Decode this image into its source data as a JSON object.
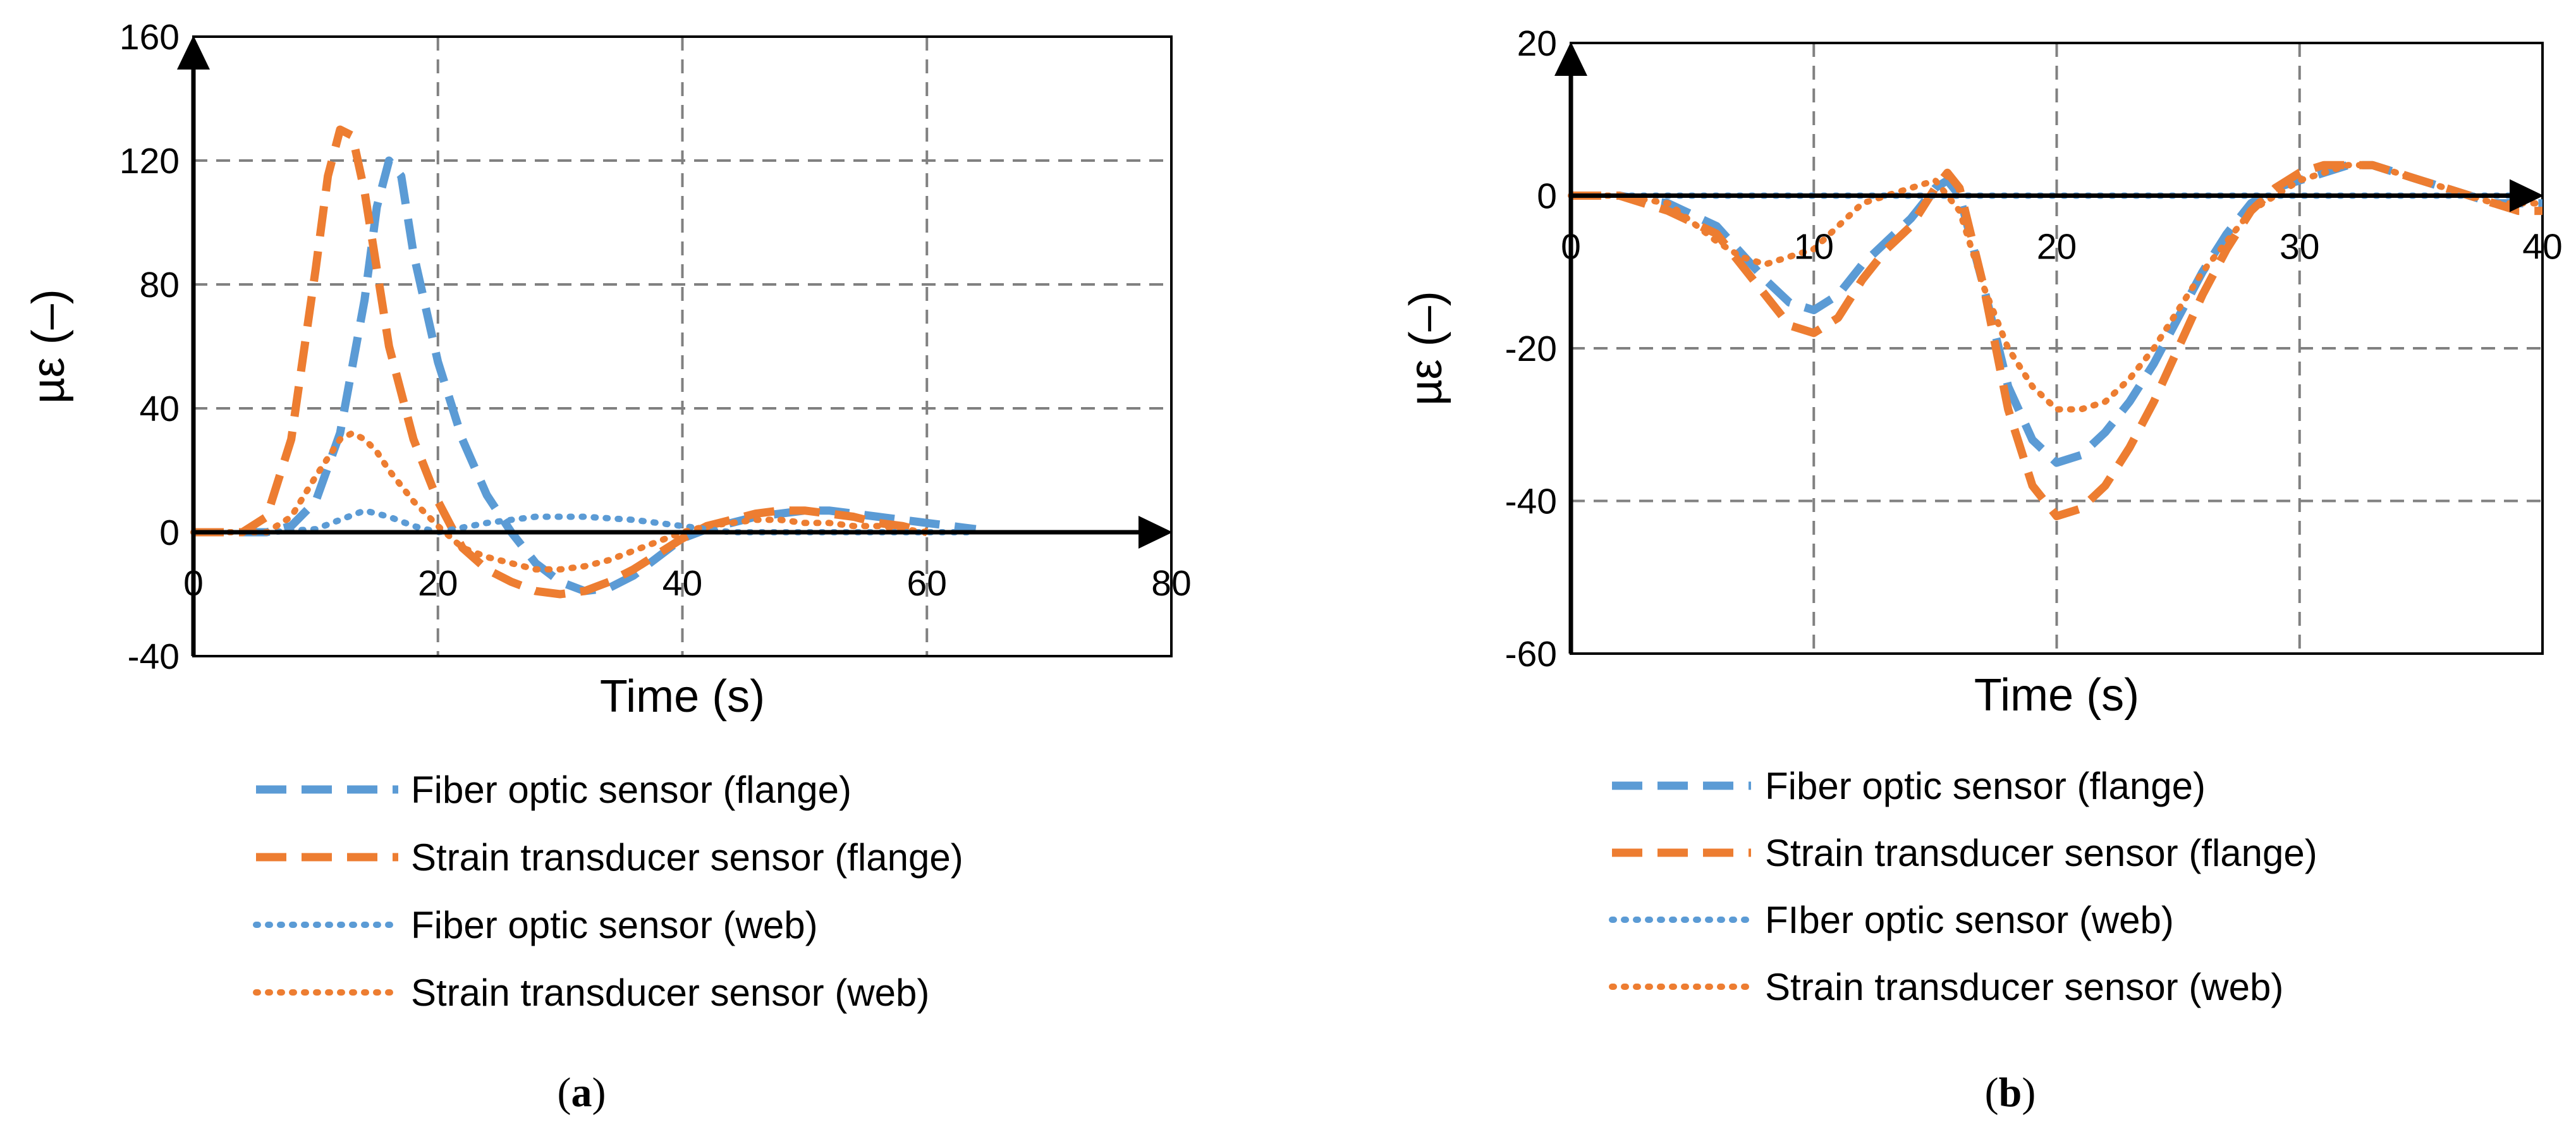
{
  "colors": {
    "blue": "#5b9bd5",
    "orange": "#ed7d31",
    "grid": "#808080",
    "axis": "#000000"
  },
  "chart_data": [
    {
      "type": "line",
      "caption": {
        "open": "(",
        "letter": "a",
        "close": ")"
      },
      "xlabel": "Time (s)",
      "ylabel": "µε (–)",
      "xlim": [
        0,
        80
      ],
      "ylim": [
        -40,
        160
      ],
      "xticks": [
        0,
        20,
        40,
        60,
        80
      ],
      "yticks": [
        -40,
        0,
        40,
        80,
        120,
        160
      ],
      "xtick_labels": [
        "0",
        "20",
        "40",
        "60",
        "80"
      ],
      "ytick_labels": [
        "-40",
        "0",
        "40",
        "80",
        "120",
        "160"
      ],
      "grid": true,
      "legend_position": "bottom",
      "series": [
        {
          "name": "Fiber optic sensor (flange)",
          "color": "blue",
          "style": "dashed",
          "x": [
            0,
            4,
            6,
            8,
            10,
            12,
            14,
            15,
            16,
            17,
            18,
            20,
            22,
            24,
            26,
            28,
            30,
            32,
            34,
            36,
            38,
            40,
            42,
            44,
            46,
            48,
            50,
            52,
            54,
            56,
            58,
            60,
            62,
            64
          ],
          "y": [
            0,
            0,
            0,
            2,
            10,
            32,
            75,
            105,
            120,
            115,
            90,
            55,
            30,
            12,
            0,
            -10,
            -16,
            -19,
            -18,
            -14,
            -8,
            -2,
            1,
            3,
            5,
            6,
            7,
            7,
            6,
            5,
            4,
            3,
            2,
            1
          ]
        },
        {
          "name": "Strain transducer sensor (flange)",
          "color": "orange",
          "style": "dashed",
          "x": [
            0,
            4,
            6,
            8,
            10,
            11,
            12,
            13,
            14,
            15,
            16,
            18,
            20,
            22,
            24,
            26,
            28,
            30,
            32,
            34,
            36,
            38,
            40,
            42,
            44,
            46,
            48,
            50,
            52,
            54,
            56,
            58,
            60
          ],
          "y": [
            0,
            0,
            5,
            30,
            85,
            115,
            130,
            128,
            110,
            85,
            60,
            30,
            10,
            -5,
            -12,
            -16,
            -19,
            -20,
            -19,
            -16,
            -12,
            -7,
            -2,
            2,
            4,
            6,
            7,
            7,
            6,
            5,
            3,
            2,
            0
          ]
        },
        {
          "name": "Fiber optic sensor (web)",
          "color": "blue",
          "style": "dotted",
          "x": [
            0,
            6,
            10,
            12,
            14,
            16,
            18,
            20,
            24,
            28,
            32,
            36,
            40,
            44,
            48,
            52,
            56,
            60,
            64
          ],
          "y": [
            0,
            0,
            1,
            4,
            7,
            5,
            2,
            0,
            3,
            5,
            5,
            4,
            2,
            0,
            0,
            0,
            0,
            0,
            0
          ]
        },
        {
          "name": "Strain transducer sensor (web)",
          "color": "orange",
          "style": "dotted",
          "x": [
            0,
            6,
            8,
            10,
            12,
            13,
            14,
            15,
            16,
            18,
            20,
            22,
            24,
            26,
            28,
            30,
            32,
            34,
            36,
            38,
            40,
            42,
            44,
            46,
            48,
            50,
            52,
            54,
            56,
            58,
            60
          ],
          "y": [
            0,
            0,
            5,
            18,
            30,
            32,
            30,
            26,
            20,
            10,
            2,
            -5,
            -8,
            -10,
            -12,
            -12,
            -11,
            -9,
            -6,
            -3,
            0,
            2,
            3,
            4,
            4,
            3,
            3,
            2,
            2,
            1,
            0
          ]
        }
      ],
      "legend": [
        {
          "label": "Fiber optic sensor (flange)",
          "color": "blue",
          "style": "dashed"
        },
        {
          "label": "Strain transducer sensor (flange)",
          "color": "orange",
          "style": "dashed"
        },
        {
          "label": "Fiber optic sensor (web)",
          "color": "blue",
          "style": "dotted"
        },
        {
          "label": "Strain transducer sensor (web)",
          "color": "orange",
          "style": "dotted"
        }
      ]
    },
    {
      "type": "line",
      "caption": {
        "open": "(",
        "letter": "b",
        "close": ")"
      },
      "xlabel": "Time (s)",
      "ylabel": "µε (–)",
      "xlim": [
        0,
        40
      ],
      "ylim": [
        -60,
        20
      ],
      "xticks": [
        0,
        10,
        20,
        30,
        40
      ],
      "yticks": [
        -60,
        -40,
        -20,
        0,
        20
      ],
      "xtick_labels": [
        "0",
        "10",
        "20",
        "30",
        "40"
      ],
      "ytick_labels": [
        "-60",
        "-40",
        "-20",
        "0",
        "20"
      ],
      "grid": true,
      "legend_position": "bottom",
      "series": [
        {
          "name": "Fiber optic sensor (flange)",
          "color": "blue",
          "style": "dashed",
          "x": [
            0,
            2,
            4,
            6,
            8,
            9,
            10,
            11,
            12,
            13,
            14,
            15,
            15.5,
            16,
            17,
            18,
            19,
            20,
            21,
            22,
            23,
            24,
            25,
            26,
            27,
            28,
            29,
            30,
            31,
            32,
            33,
            34,
            35,
            36,
            37,
            38,
            39,
            40
          ],
          "y": [
            0,
            0,
            -1,
            -4,
            -11,
            -14,
            -15,
            -13,
            -9,
            -6,
            -3,
            1,
            2,
            0,
            -12,
            -25,
            -32,
            -35,
            -34,
            -31,
            -27,
            -22,
            -16,
            -10,
            -5,
            -1,
            1,
            2,
            3,
            4,
            4,
            3,
            2,
            1,
            0,
            -1,
            -1,
            -1
          ]
        },
        {
          "name": "Strain transducer sensor (flange)",
          "color": "orange",
          "style": "dashed",
          "x": [
            0,
            2,
            4,
            6,
            8,
            9,
            10,
            11,
            12,
            13,
            14,
            15,
            15.5,
            16,
            17,
            18,
            19,
            20,
            21,
            22,
            23,
            24,
            25,
            26,
            27,
            28,
            29,
            30,
            31,
            32,
            33,
            34,
            35,
            36,
            37,
            38,
            39,
            40
          ],
          "y": [
            0,
            0,
            -2,
            -5,
            -13,
            -17,
            -18,
            -16,
            -11,
            -7,
            -4,
            1,
            3,
            1,
            -12,
            -28,
            -38,
            -42,
            -41,
            -38,
            -33,
            -27,
            -20,
            -13,
            -7,
            -2,
            1,
            3,
            4,
            4,
            4,
            3,
            2,
            1,
            0,
            -1,
            -2,
            -2
          ]
        },
        {
          "name": "FIber optic sensor (web)",
          "color": "blue",
          "style": "dotted",
          "x": [
            0,
            5,
            10,
            15,
            20,
            25,
            30,
            35,
            40
          ],
          "y": [
            0,
            0,
            0,
            0,
            0,
            0,
            0,
            0,
            0
          ]
        },
        {
          "name": "Strain transducer sensor (web)",
          "color": "orange",
          "style": "dotted",
          "x": [
            0,
            2,
            4,
            6,
            7,
            8,
            9,
            10,
            11,
            12,
            13,
            14,
            15,
            16,
            17,
            18,
            19,
            20,
            21,
            22,
            23,
            24,
            25,
            26,
            27,
            28,
            29,
            30,
            31,
            32,
            33,
            34,
            35,
            36,
            37,
            38,
            39,
            40
          ],
          "y": [
            0,
            0,
            -1,
            -6,
            -8,
            -9,
            -8,
            -7,
            -4,
            -1,
            0,
            1,
            2,
            -2,
            -12,
            -20,
            -25,
            -28,
            -28,
            -27,
            -24,
            -20,
            -15,
            -10,
            -6,
            -2,
            0,
            2,
            3,
            4,
            4,
            3,
            2,
            1,
            0,
            -1,
            -1,
            -1
          ]
        }
      ],
      "legend": [
        {
          "label": "Fiber optic sensor (flange)",
          "color": "blue",
          "style": "dashed"
        },
        {
          "label": "Strain transducer sensor (flange)",
          "color": "orange",
          "style": "dashed"
        },
        {
          "label": "FIber optic sensor (web)",
          "color": "blue",
          "style": "dotted"
        },
        {
          "label": "Strain transducer sensor (web)",
          "color": "orange",
          "style": "dotted"
        }
      ]
    }
  ]
}
